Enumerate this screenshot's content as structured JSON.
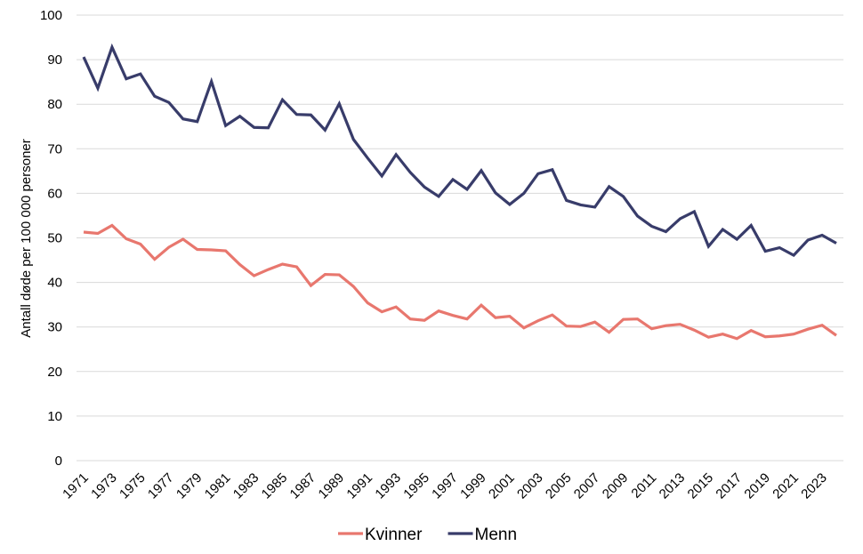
{
  "chart_data": {
    "type": "line",
    "title": "",
    "xlabel": "",
    "ylabel": "Antall døde per 100 000 personer",
    "ylim": [
      0,
      100
    ],
    "yticks": [
      0,
      10,
      20,
      30,
      40,
      50,
      60,
      70,
      80,
      90,
      100
    ],
    "xtick_labels": [
      "1971",
      "1973",
      "1975",
      "1977",
      "1979",
      "1981",
      "1983",
      "1985",
      "1987",
      "1989",
      "1991",
      "1993",
      "1995",
      "1997",
      "1999",
      "2001",
      "2003",
      "2005",
      "2007",
      "2009",
      "2011",
      "2013",
      "2015",
      "2017",
      "2019",
      "2021",
      "2023"
    ],
    "x": [
      1971,
      1972,
      1973,
      1974,
      1975,
      1976,
      1977,
      1978,
      1979,
      1980,
      1981,
      1982,
      1983,
      1984,
      1985,
      1986,
      1987,
      1988,
      1989,
      1990,
      1991,
      1992,
      1993,
      1994,
      1995,
      1996,
      1997,
      1998,
      1999,
      2000,
      2001,
      2002,
      2003,
      2004,
      2005,
      2006,
      2007,
      2008,
      2009,
      2010,
      2011,
      2012,
      2013,
      2014,
      2015,
      2016,
      2017,
      2018,
      2019,
      2020,
      2021,
      2022,
      2023,
      2024
    ],
    "grid": true,
    "legend_position": "bottom",
    "series": [
      {
        "name": "Kvinner",
        "color": "#e8776e",
        "values": [
          51.3,
          51.0,
          52.8,
          49.8,
          48.6,
          45.2,
          47.9,
          49.7,
          47.4,
          47.3,
          47.1,
          44.0,
          41.5,
          42.9,
          44.1,
          43.5,
          39.3,
          41.8,
          41.7,
          39.1,
          35.4,
          33.4,
          34.5,
          31.8,
          31.5,
          33.6,
          32.6,
          31.8,
          34.9,
          32.1,
          32.4,
          29.8,
          31.4,
          32.7,
          30.2,
          30.1,
          31.1,
          28.8,
          31.7,
          31.8,
          29.6,
          30.3,
          30.6,
          29.3,
          27.7,
          28.4,
          27.4,
          29.2,
          27.8,
          28.0,
          28.4,
          29.5,
          30.4,
          28.1
        ]
      },
      {
        "name": "Menn",
        "color": "#383c6a",
        "values": [
          90.6,
          83.6,
          92.8,
          85.7,
          86.8,
          81.8,
          80.4,
          76.7,
          76.1,
          85.1,
          75.2,
          77.3,
          74.8,
          74.7,
          81.0,
          77.7,
          77.6,
          74.2,
          80.1,
          72.1,
          67.9,
          63.9,
          68.7,
          64.7,
          61.4,
          59.3,
          63.1,
          60.9,
          65.1,
          60.1,
          57.5,
          60.0,
          64.4,
          65.3,
          58.4,
          57.4,
          56.9,
          61.5,
          59.3,
          54.9,
          52.6,
          51.4,
          54.3,
          55.9,
          48.1,
          51.9,
          49.7,
          52.8,
          47.0,
          47.8,
          46.1,
          49.5,
          50.6,
          48.8
        ]
      }
    ]
  }
}
